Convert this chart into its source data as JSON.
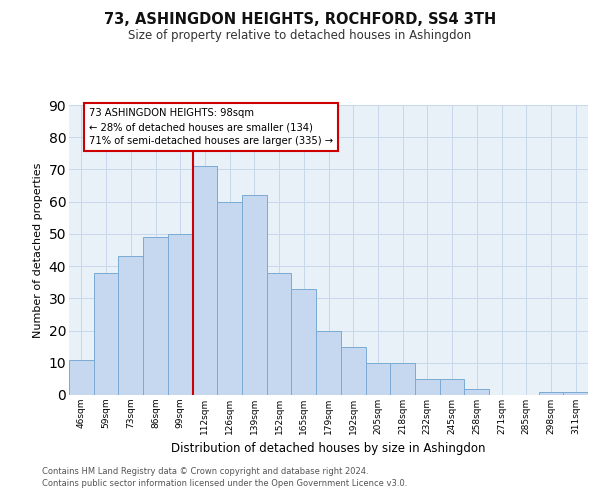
{
  "title": "73, ASHINGDON HEIGHTS, ROCHFORD, SS4 3TH",
  "subtitle": "Size of property relative to detached houses in Ashingdon",
  "xlabel": "Distribution of detached houses by size in Ashingdon",
  "ylabel": "Number of detached properties",
  "bar_labels": [
    "46sqm",
    "59sqm",
    "73sqm",
    "86sqm",
    "99sqm",
    "112sqm",
    "126sqm",
    "139sqm",
    "152sqm",
    "165sqm",
    "179sqm",
    "192sqm",
    "205sqm",
    "218sqm",
    "232sqm",
    "245sqm",
    "258sqm",
    "271sqm",
    "285sqm",
    "298sqm",
    "311sqm"
  ],
  "bar_values": [
    11,
    38,
    43,
    49,
    50,
    71,
    60,
    62,
    38,
    33,
    20,
    15,
    10,
    10,
    5,
    5,
    2,
    0,
    0,
    1,
    1
  ],
  "bar_color": "#c5d8f0",
  "bar_edgecolor": "#7aaad4",
  "vline_x": 4.5,
  "vline_color": "#cc0000",
  "annotation_line1": "73 ASHINGDON HEIGHTS: 98sqm",
  "annotation_line2": "← 28% of detached houses are smaller (134)",
  "annotation_line3": "71% of semi-detached houses are larger (335) →",
  "annotation_box_color": "#ffffff",
  "annotation_box_edgecolor": "#cc0000",
  "ylim": [
    0,
    90
  ],
  "yticks": [
    0,
    10,
    20,
    30,
    40,
    50,
    60,
    70,
    80,
    90
  ],
  "grid_color": "#c8d8ea",
  "background_color": "#e8f0f8",
  "footer_line1": "Contains HM Land Registry data © Crown copyright and database right 2024.",
  "footer_line2": "Contains public sector information licensed under the Open Government Licence v3.0."
}
